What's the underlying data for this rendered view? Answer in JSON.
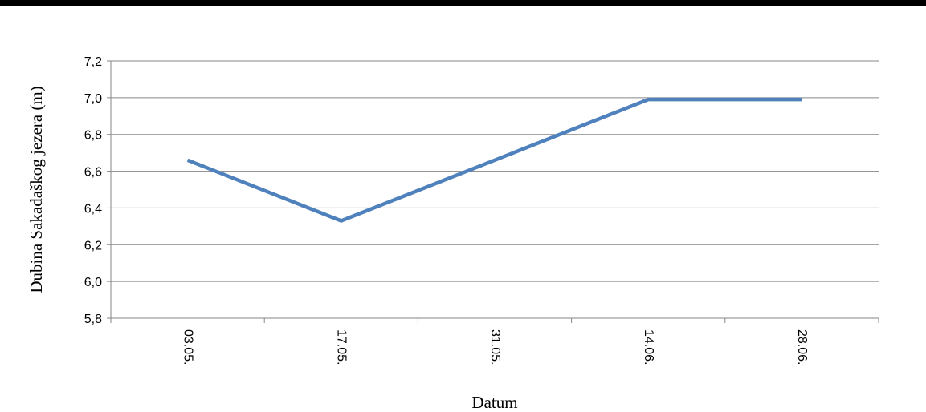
{
  "chart_data": {
    "type": "line",
    "categories": [
      "03.05.",
      "17.05.",
      "31.05.",
      "14.06.",
      "28.06."
    ],
    "series": [
      {
        "values": [
          6.66,
          6.33,
          6.66,
          6.99,
          6.99
        ]
      }
    ],
    "xlabel": "Datum",
    "ylabel": "Dubina Sakadaškog jezera (m)",
    "ylim": [
      5.8,
      7.2
    ],
    "yticks": [
      "5,8",
      "6,0",
      "6,2",
      "6,4",
      "6,6",
      "6,8",
      "7,0",
      "7,2"
    ],
    "grid": true,
    "legend": "none"
  },
  "colors": {
    "series": "#4f81bd",
    "grid": "#868686",
    "axis": "#868686"
  }
}
